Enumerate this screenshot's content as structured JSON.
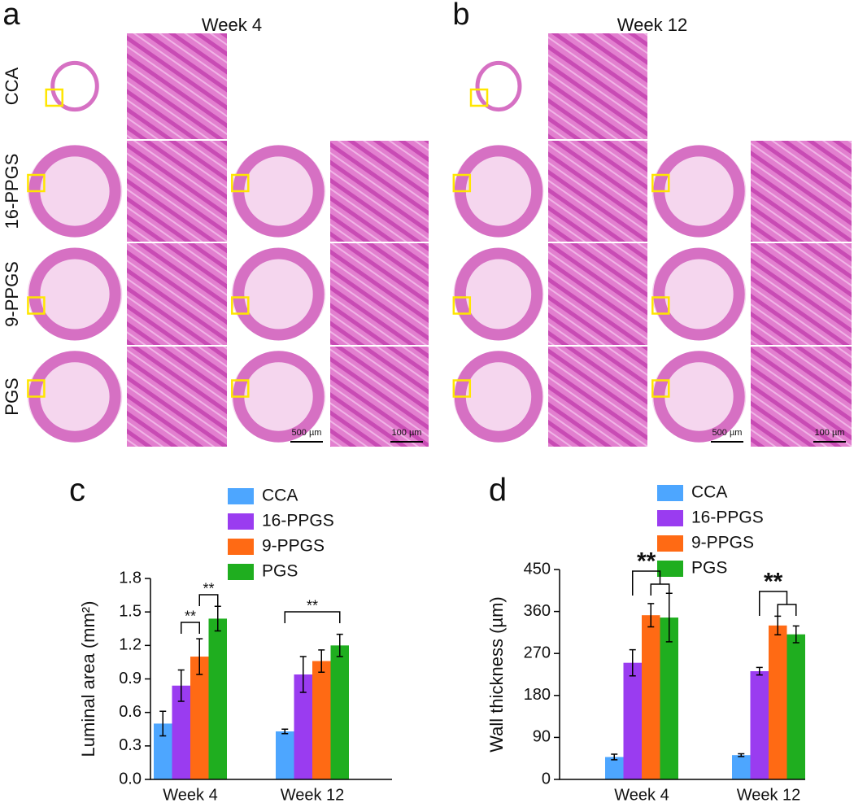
{
  "panels": {
    "a": {
      "label": "a",
      "title": "Week 4"
    },
    "b": {
      "label": "b",
      "title": "Week 12"
    },
    "rows": [
      "CCA",
      "16-PPGS",
      "9-PPGS",
      "PGS"
    ],
    "scale_bars": [
      "500 µm",
      "100 µm",
      "500 µm",
      "100 µm"
    ]
  },
  "chart_data": [
    {
      "type": "bar",
      "panel_label": "c",
      "ylabel": "Luminal area (mm²)",
      "categories": [
        "Week 4",
        "Week 12"
      ],
      "series": [
        {
          "name": "CCA",
          "color": "#4da6ff",
          "values": [
            0.5,
            0.43
          ],
          "errors": [
            0.11,
            0.02
          ]
        },
        {
          "name": "16-PPGS",
          "color": "#9a3cf0",
          "values": [
            0.84,
            0.94
          ],
          "errors": [
            0.14,
            0.16
          ]
        },
        {
          "name": "9-PPGS",
          "color": "#ff6a14",
          "values": [
            1.1,
            1.06
          ],
          "errors": [
            0.16,
            0.1
          ]
        },
        {
          "name": "PGS",
          "color": "#1fae1f",
          "values": [
            1.44,
            1.2
          ],
          "errors": [
            0.11,
            0.1
          ]
        }
      ],
      "ylim": [
        0,
        1.8
      ],
      "yticks": [
        {
          "value": 0,
          "label": "0.0"
        },
        0.3,
        0.6,
        0.9,
        1.2,
        1.5,
        1.8
      ],
      "legend": "upper center",
      "annotations": [
        "**",
        "**",
        "**"
      ]
    },
    {
      "type": "bar",
      "panel_label": "d",
      "ylabel": "Wall thickness (µm)",
      "categories": [
        "Week 4",
        "Week 12"
      ],
      "series": [
        {
          "name": "CCA",
          "color": "#4da6ff",
          "values": [
            48,
            52
          ],
          "errors": [
            6,
            3
          ]
        },
        {
          "name": "16-PPGS",
          "color": "#9a3cf0",
          "values": [
            250,
            232
          ],
          "errors": [
            28,
            8
          ]
        },
        {
          "name": "9-PPGS",
          "color": "#ff6a14",
          "values": [
            352,
            330
          ],
          "errors": [
            25,
            20
          ]
        },
        {
          "name": "PGS",
          "color": "#1fae1f",
          "values": [
            347,
            311
          ],
          "errors": [
            52,
            18
          ]
        }
      ],
      "ylim": [
        0,
        450
      ],
      "yticks": [
        0,
        90,
        180,
        270,
        360,
        450
      ],
      "legend": "upper center",
      "annotations": [
        "**",
        "**"
      ]
    }
  ]
}
